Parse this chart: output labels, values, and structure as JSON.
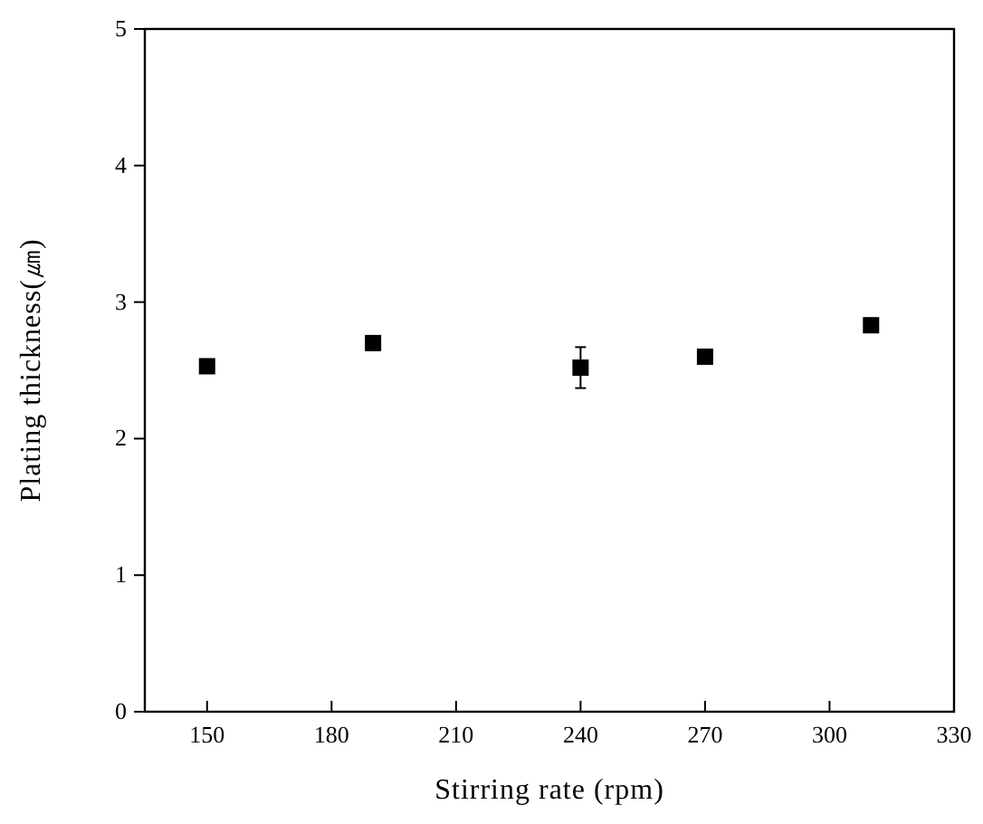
{
  "chart_data": {
    "type": "scatter",
    "xlabel": "Stirring rate (rpm)",
    "ylabel": "Plating thickness(㎛)",
    "x": [
      150,
      190,
      240,
      270,
      310
    ],
    "values": [
      2.53,
      2.7,
      2.52,
      2.6,
      2.83
    ],
    "errors": [
      0.05,
      0.05,
      0.15,
      0.04,
      0.05
    ],
    "color": "#000000",
    "marker": "square",
    "xlim": [
      135,
      330
    ],
    "xticks": [
      150,
      180,
      210,
      240,
      270,
      300,
      330
    ],
    "ylim": [
      0,
      5
    ],
    "yticks": [
      0,
      1,
      2,
      3,
      4,
      5
    ],
    "grid": false
  }
}
